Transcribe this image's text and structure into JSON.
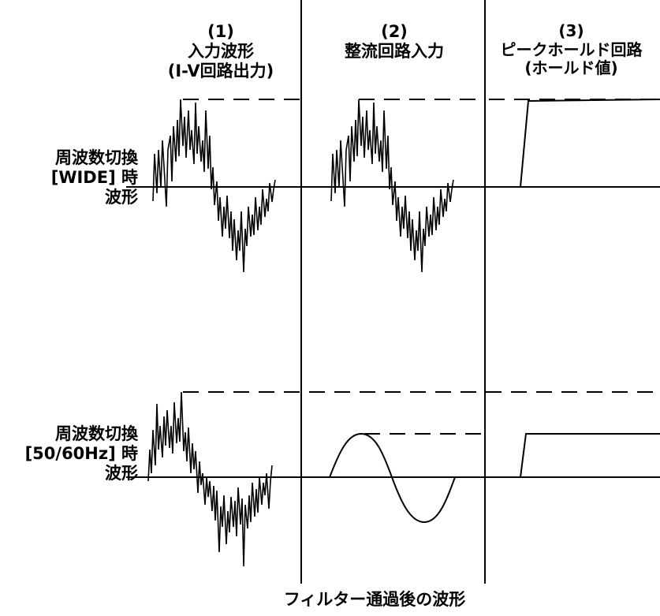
{
  "columns": [
    {
      "number": "(1)",
      "title_line1": "入力波形",
      "title_line2": "(I-V回路出力)"
    },
    {
      "number": "(2)",
      "title_line1": "整流回路入力",
      "title_line2": ""
    },
    {
      "number": "(3)",
      "title_line1": "ピークホールド回路",
      "title_line2": "(ホールド値)"
    }
  ],
  "rows": [
    {
      "label_line1": "周波数切換",
      "label_line2": "[WIDE] 時",
      "label_line3": "波形"
    },
    {
      "label_line1": "周波数切換",
      "label_line2": "[50/60Hz] 時",
      "label_line3": "波形"
    }
  ],
  "footer_caption": "フィルター通過後の波形"
}
